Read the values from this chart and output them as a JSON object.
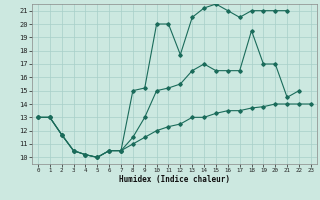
{
  "title": "",
  "xlabel": "Humidex (Indice chaleur)",
  "bg_color": "#cce8e0",
  "grid_color": "#a8cfc8",
  "line_color": "#1a6b5a",
  "xlim": [
    -0.5,
    23.5
  ],
  "ylim": [
    9.5,
    21.5
  ],
  "xticks": [
    0,
    1,
    2,
    3,
    4,
    5,
    6,
    7,
    8,
    9,
    10,
    11,
    12,
    13,
    14,
    15,
    16,
    17,
    18,
    19,
    20,
    21,
    22,
    23
  ],
  "yticks": [
    10,
    11,
    12,
    13,
    14,
    15,
    16,
    17,
    18,
    19,
    20,
    21
  ],
  "series": [
    {
      "x": [
        0,
        1,
        2,
        3,
        4,
        5,
        6,
        7,
        8,
        9,
        10,
        11,
        12,
        13,
        14,
        15,
        16,
        17,
        18,
        19,
        20,
        21
      ],
      "y": [
        13,
        13,
        11.7,
        10.5,
        10.2,
        10.0,
        10.5,
        10.5,
        15.0,
        15.2,
        20.0,
        20.0,
        17.7,
        20.5,
        21.2,
        21.5,
        21.0,
        20.5,
        21.0,
        21.0,
        21.0,
        21.0
      ]
    },
    {
      "x": [
        0,
        1,
        2,
        3,
        4,
        5,
        6,
        7,
        8,
        9,
        10,
        11,
        12,
        13,
        14,
        15,
        16,
        17,
        18,
        19,
        20,
        21,
        22
      ],
      "y": [
        13,
        13,
        11.7,
        10.5,
        10.2,
        10.0,
        10.5,
        10.5,
        11.5,
        13.0,
        15.0,
        15.2,
        15.5,
        16.5,
        17.0,
        16.5,
        16.5,
        16.5,
        19.5,
        17.0,
        17.0,
        14.5,
        15.0
      ]
    },
    {
      "x": [
        0,
        1,
        2,
        3,
        4,
        5,
        6,
        7,
        8,
        9,
        10,
        11,
        12,
        13,
        14,
        15,
        16,
        17,
        18,
        19,
        20,
        21,
        22,
        23
      ],
      "y": [
        13,
        13,
        11.7,
        10.5,
        10.2,
        10.0,
        10.5,
        10.5,
        11.0,
        11.5,
        12.0,
        12.3,
        12.5,
        13.0,
        13.0,
        13.3,
        13.5,
        13.5,
        13.7,
        13.8,
        14.0,
        14.0,
        14.0,
        14.0
      ]
    }
  ]
}
